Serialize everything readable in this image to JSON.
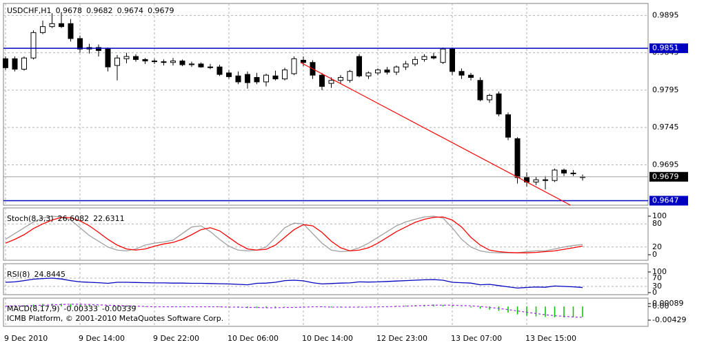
{
  "chart_data": [
    {
      "type": "candlestick",
      "title": "USDCHF,H1",
      "categories": [
        "9 Dec 2010",
        null,
        null,
        null,
        null,
        null,
        null,
        null,
        "9 Dec 14:00",
        null,
        null,
        null,
        null,
        null,
        null,
        null,
        "9 Dec 22:00",
        null,
        null,
        null,
        null,
        null,
        null,
        null,
        "10 Dec 06:00",
        null,
        null,
        null,
        null,
        null,
        null,
        null,
        "10 Dec 14:00",
        null,
        null,
        null,
        null,
        null,
        null,
        null,
        "12 Dec 23:00",
        null,
        null,
        null,
        null,
        null,
        null,
        null,
        "13 Dec 07:00",
        null,
        null,
        null,
        null,
        null,
        null,
        null,
        "13 Dec 15:00",
        null,
        null,
        null,
        null,
        null,
        null
      ],
      "open": [
        0.9837,
        0.9837,
        0.9823,
        0.9838,
        0.9872,
        0.988,
        0.9884,
        0.9884,
        0.9864,
        0.985,
        0.9852,
        0.985,
        0.9828,
        0.9837,
        0.984,
        0.9836,
        0.9834,
        0.9833,
        0.9832,
        0.9834,
        0.9829,
        0.983,
        0.9826,
        0.9826,
        0.9818,
        0.9814,
        0.9816,
        0.9812,
        0.9806,
        0.9814,
        0.981,
        0.9817,
        0.9835,
        0.9832,
        0.9815,
        0.9804,
        0.9808,
        0.9808,
        0.984,
        0.9814,
        0.9818,
        0.9822,
        0.9819,
        0.9826,
        0.983,
        0.9836,
        0.984,
        0.9832,
        0.985,
        0.982,
        0.9815,
        0.9808,
        0.9782,
        0.979,
        0.9762,
        0.973,
        0.9678,
        0.9672,
        0.9675,
        0.9674,
        0.9688,
        0.9684,
        0.9678
      ],
      "high": [
        0.984,
        0.984,
        0.984,
        0.9875,
        0.9888,
        0.9898,
        0.9899,
        0.989,
        0.9868,
        0.9857,
        0.9856,
        0.9852,
        0.9842,
        0.9845,
        0.9843,
        0.9838,
        0.9837,
        0.9836,
        0.9838,
        0.9836,
        0.9833,
        0.9832,
        0.983,
        0.9829,
        0.9822,
        0.982,
        0.982,
        0.9818,
        0.9817,
        0.9821,
        0.9825,
        0.984,
        0.984,
        0.9835,
        0.9818,
        0.9812,
        0.9815,
        0.9822,
        0.9843,
        0.982,
        0.9824,
        0.9826,
        0.9828,
        0.9834,
        0.984,
        0.9843,
        0.9845,
        0.9852,
        0.9852,
        0.9824,
        0.9818,
        0.9812,
        0.979,
        0.9793,
        0.9765,
        0.9732,
        0.9685,
        0.9679,
        0.968,
        0.969,
        0.969,
        0.9688,
        0.9682
      ],
      "low": [
        0.9822,
        0.982,
        0.9821,
        0.9836,
        0.987,
        0.9878,
        0.9878,
        0.986,
        0.9845,
        0.9844,
        0.984,
        0.982,
        0.9808,
        0.9831,
        0.9833,
        0.983,
        0.983,
        0.9828,
        0.9828,
        0.9827,
        0.9826,
        0.9825,
        0.9823,
        0.9814,
        0.981,
        0.9803,
        0.9797,
        0.9803,
        0.98,
        0.9808,
        0.9808,
        0.9815,
        0.9827,
        0.981,
        0.9795,
        0.9798,
        0.9804,
        0.9805,
        0.9812,
        0.981,
        0.9815,
        0.9816,
        0.9815,
        0.9822,
        0.9827,
        0.9833,
        0.9836,
        0.983,
        0.9815,
        0.981,
        0.9808,
        0.978,
        0.9778,
        0.976,
        0.9728,
        0.967,
        0.9666,
        0.9668,
        0.9662,
        0.9672,
        0.968,
        0.968,
        0.9674
      ],
      "close": [
        0.9825,
        0.9823,
        0.9838,
        0.9872,
        0.988,
        0.9884,
        0.988,
        0.9864,
        0.985,
        0.9852,
        0.9848,
        0.9826,
        0.9838,
        0.984,
        0.9836,
        0.9834,
        0.9833,
        0.9832,
        0.9834,
        0.9829,
        0.983,
        0.9826,
        0.9826,
        0.9816,
        0.9813,
        0.9806,
        0.9805,
        0.9806,
        0.9815,
        0.981,
        0.9822,
        0.9837,
        0.9832,
        0.9815,
        0.98,
        0.9808,
        0.9812,
        0.982,
        0.9814,
        0.9818,
        0.9822,
        0.9819,
        0.9826,
        0.983,
        0.9836,
        0.984,
        0.9838,
        0.985,
        0.982,
        0.9815,
        0.9812,
        0.9782,
        0.9788,
        0.9763,
        0.9732,
        0.9678,
        0.9672,
        0.9675,
        0.9674,
        0.9688,
        0.9684,
        0.9683,
        0.9679
      ],
      "ylim": [
        0.9641,
        0.9911
      ],
      "yticks": [
        0.9695,
        0.9745,
        0.9795,
        0.9845,
        0.9895
      ],
      "grid": true,
      "price_lines": [
        {
          "value": 0.9851,
          "color": "#0000c0"
        },
        {
          "value": 0.9647,
          "color": "#0000c0"
        }
      ],
      "current_price": 0.9679,
      "trendline": {
        "x": [
          31.7,
          60.7
        ],
        "values": [
          0.9832,
          0.9641
        ],
        "color": "#ff0000"
      }
    },
    {
      "type": "line",
      "title": "Stoch(8,3,3)",
      "series": [
        {
          "color": "#a0a0a0",
          "values": [
            40,
            55,
            70,
            85,
            95,
            100,
            98,
            90,
            70,
            50,
            35,
            20,
            12,
            10,
            15,
            25,
            30,
            33,
            38,
            55,
            72,
            75,
            60,
            40,
            22,
            12,
            10,
            12,
            20,
            45,
            70,
            82,
            80,
            55,
            30,
            12,
            8,
            10,
            18,
            30,
            45,
            60,
            75,
            85,
            92,
            98,
            100,
            95,
            70,
            40,
            20,
            10,
            6,
            5,
            5,
            5,
            8,
            10,
            10,
            15,
            20,
            24,
            26.6082
          ]
        },
        {
          "color": "#ff0000",
          "values": [
            30,
            40,
            52,
            68,
            80,
            90,
            97,
            96,
            88,
            75,
            58,
            40,
            25,
            15,
            12,
            15,
            22,
            28,
            32,
            40,
            52,
            65,
            70,
            62,
            45,
            28,
            15,
            12,
            14,
            25,
            45,
            65,
            78,
            75,
            58,
            35,
            18,
            10,
            12,
            18,
            30,
            45,
            60,
            72,
            84,
            92,
            97,
            98,
            90,
            72,
            45,
            25,
            12,
            8,
            6,
            5,
            5,
            6,
            8,
            10,
            14,
            18,
            22.6311
          ]
        }
      ],
      "ylim": [
        0,
        100
      ],
      "yticks": [
        0,
        20,
        80,
        100
      ]
    },
    {
      "type": "line",
      "title": "RSI(8)",
      "series": [
        {
          "color": "#0000c0",
          "values": [
            50,
            52,
            58,
            65,
            68,
            70,
            66,
            58,
            52,
            50,
            48,
            45,
            50,
            50,
            49,
            48,
            47,
            47,
            46,
            46,
            45,
            45,
            44,
            43,
            42,
            40,
            38,
            45,
            46,
            50,
            58,
            60,
            57,
            48,
            42,
            44,
            46,
            47,
            52,
            51,
            52,
            54,
            56,
            58,
            60,
            62,
            63,
            60,
            50,
            48,
            46,
            38,
            40,
            34,
            28,
            22,
            25,
            27,
            26,
            32,
            30,
            28,
            24.8445
          ]
        }
      ],
      "ylim": [
        0,
        100
      ],
      "yticks": [
        0,
        30,
        70,
        100
      ]
    },
    {
      "type": "bar",
      "title": "MACD(8,17,9)",
      "annotation": "ICMB Platform, © 2001-2010 MetaQuotes Software Corp.",
      "series": [
        {
          "color": "#00c000",
          "values": [
            0.0002,
            0.0003,
            0.0004,
            0.0006,
            0.0008,
            0.0009,
            0.0009,
            0.0008,
            0.0006,
            0.0004,
            0.0002,
            0,
            -0.0001,
            -0.0002,
            -0.0002,
            -0.0002,
            -0.0002,
            -0.0002,
            -0.0002,
            -0.0001,
            0,
            0,
            -0.0001,
            -0.0002,
            -0.0003,
            -0.0004,
            -0.0005,
            -0.0005,
            -0.0004,
            -0.0003,
            -0.0001,
            0,
            0.0001,
            0,
            -0.0002,
            -0.0003,
            -0.0003,
            -0.0003,
            -0.0002,
            -0.0001,
            0,
            0.0001,
            0.0002,
            0.0003,
            0.0004,
            0.0005,
            0.0006,
            0.0005,
            0.0003,
            0,
            -0.0003,
            -0.0007,
            -0.001,
            -0.0014,
            -0.0019,
            -0.0025,
            -0.0029,
            -0.0031,
            -0.0033,
            -0.0034,
            -0.0034,
            -0.0034,
            -0.00333
          ]
        },
        {
          "color": "#a020f0",
          "type": "line",
          "values": [
            0.0001,
            0.0002,
            0.0002,
            0.0003,
            0.0004,
            0.0005,
            0.0006,
            0.0007,
            0.0007,
            0.0006,
            0.0005,
            0.0004,
            0.0003,
            0.0002,
            0.0001,
            0,
            -0.0001,
            -0.0001,
            -0.0001,
            -0.0001,
            -0.0001,
            -0.0001,
            -0.0001,
            -0.0001,
            -0.0002,
            -0.0002,
            -0.0003,
            -0.0003,
            -0.0004,
            -0.0004,
            -0.0003,
            -0.0003,
            -0.0002,
            -0.0001,
            -0.0001,
            -0.0002,
            -0.0002,
            -0.0002,
            -0.0002,
            -0.0002,
            -0.0001,
            -0.0001,
            0,
            0.0001,
            0.0002,
            0.0003,
            0.0004,
            0.0004,
            0.0004,
            0.0003,
            0.0002,
            0,
            -0.0003,
            -0.0006,
            -0.001,
            -0.0014,
            -0.0018,
            -0.0022,
            -0.0026,
            -0.0029,
            -0.0031,
            -0.0033,
            -0.00339
          ]
        }
      ],
      "ylim": [
        -0.00429,
        0.00089
      ],
      "yticks": [
        -0.00429,
        {
          "value": 0,
          "label": "0.00"
        },
        0.00089
      ]
    }
  ]
}
